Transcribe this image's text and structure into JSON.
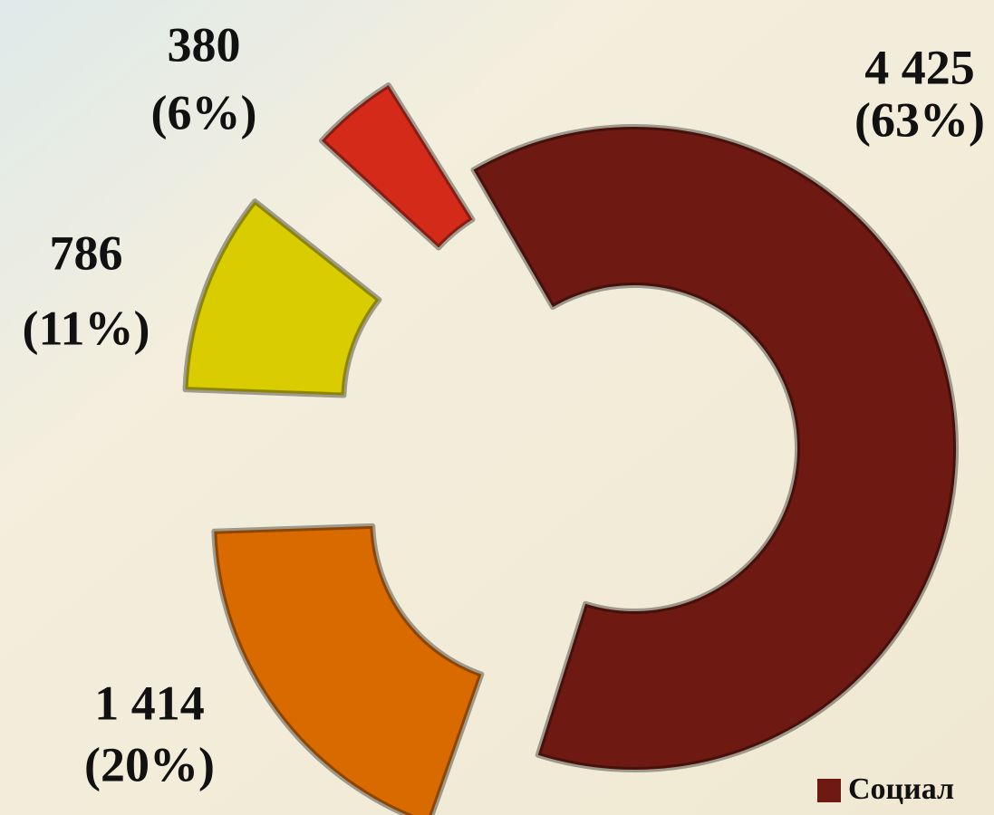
{
  "chart_data": {
    "type": "donut",
    "series": [
      {
        "name": "Социал",
        "values": [
          4425,
          1414,
          786,
          380
        ],
        "value_labels": [
          "4 425",
          "1 414",
          "786",
          "380"
        ],
        "percentages": [
          63,
          20,
          11,
          6
        ],
        "percentage_labels": [
          "(63%)",
          "(20%)",
          "(11%)",
          "(6%)"
        ],
        "colors": [
          "#6e1a12",
          "#d96a00",
          "#d9cc00",
          "#d42a1a"
        ],
        "color": "#6e1a12"
      }
    ]
  }
}
